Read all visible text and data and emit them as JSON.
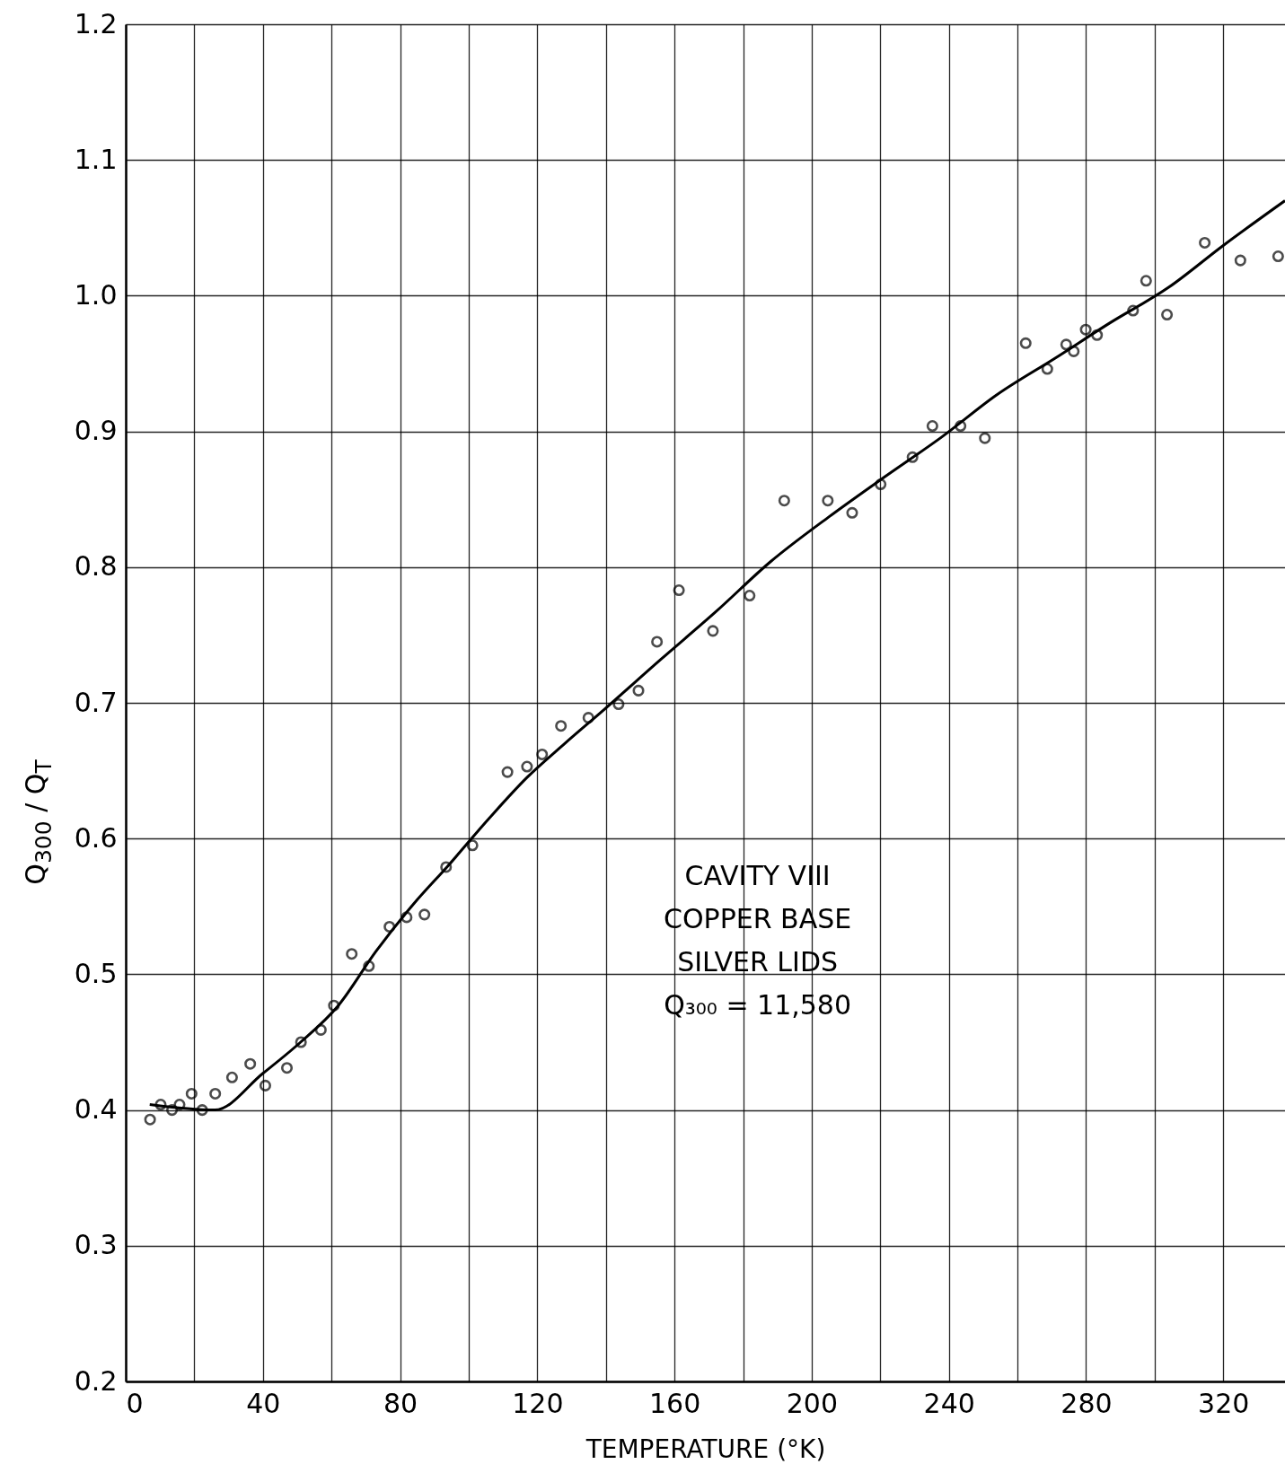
{
  "chart_data": {
    "type": "scatter",
    "xlabel": "TEMPERATURE (°K)",
    "ylabel": "Q$_{300}$ / Q$_{T}$",
    "xlim": [
      0,
      338
    ],
    "xticks": [
      0,
      {
        "value": 20,
        "label": null
      },
      40,
      {
        "value": 60,
        "label": null
      },
      80,
      {
        "value": 100,
        "label": null
      },
      120,
      {
        "value": 140,
        "label": null
      },
      160,
      {
        "value": 180,
        "label": null
      },
      200,
      {
        "value": 220,
        "label": null
      },
      240,
      {
        "value": 260,
        "label": null
      },
      280,
      {
        "value": 300,
        "label": null
      },
      320
    ],
    "ylim": [
      0.2,
      1.2
    ],
    "yticks": [
      0.2,
      0.3,
      0.4,
      0.5,
      0.6,
      0.7,
      0.8,
      0.9,
      {
        "value": 1,
        "label": "1.0"
      },
      1.1,
      1.2
    ],
    "grid": true,
    "marker": "circle",
    "annotations": [
      "CAVITY VIII",
      "COPPER BASE",
      "SILVER LIDS",
      "Q₃₀₀ = 11,580"
    ],
    "series": [
      {
        "color": "#000000",
        "x": [
          7.1,
          10.2,
          13.5,
          15.7,
          19.2,
          22.3,
          26.1,
          31.0,
          36.3,
          40.7,
          47.0,
          51.1,
          56.9,
          60.7,
          65.9,
          70.9,
          76.9,
          81.9,
          87.1,
          93.4,
          101.1,
          111.3,
          117.0,
          121.4,
          126.9,
          134.9,
          143.7,
          149.5,
          154.9,
          161.3,
          171.2,
          181.9,
          192.0,
          204.7,
          211.8,
          220.1,
          229.4,
          235.2,
          243.4,
          250.5,
          262.4,
          268.7,
          274.2,
          276.4,
          279.9,
          283.2,
          293.7,
          297.5,
          303.6,
          314.6,
          325.0,
          336.0
        ],
        "values": [
          0.393,
          0.404,
          0.4,
          0.404,
          0.412,
          0.4,
          0.412,
          0.424,
          0.434,
          0.418,
          0.431,
          0.45,
          0.459,
          0.477,
          0.515,
          0.506,
          0.535,
          0.542,
          0.544,
          0.579,
          0.595,
          0.649,
          0.653,
          0.662,
          0.683,
          0.689,
          0.699,
          0.709,
          0.745,
          0.783,
          0.753,
          0.779,
          0.849,
          0.849,
          0.84,
          0.861,
          0.881,
          0.904,
          0.904,
          0.895,
          0.965,
          0.946,
          0.964,
          0.959,
          0.975,
          0.971,
          0.989,
          1.011,
          0.986,
          1.039,
          1.026,
          1.029
        ]
      },
      {
        "type": "line",
        "color": "#000000",
        "line_style": "solid",
        "marker": "none",
        "x": [
          7,
          26,
          40,
          51,
          62,
          73,
          84,
          94,
          106,
          117,
          128,
          139,
          156,
          172,
          188,
          205,
          221,
          238,
          254,
          271,
          287,
          304,
          320,
          338
        ],
        "values": [
          0.404,
          0.4,
          0.427,
          0.45,
          0.477,
          0.517,
          0.552,
          0.58,
          0.615,
          0.645,
          0.67,
          0.694,
          0.732,
          0.767,
          0.804,
          0.837,
          0.866,
          0.896,
          0.927,
          0.954,
          0.98,
          1.006,
          1.037,
          1.07
        ]
      }
    ]
  }
}
